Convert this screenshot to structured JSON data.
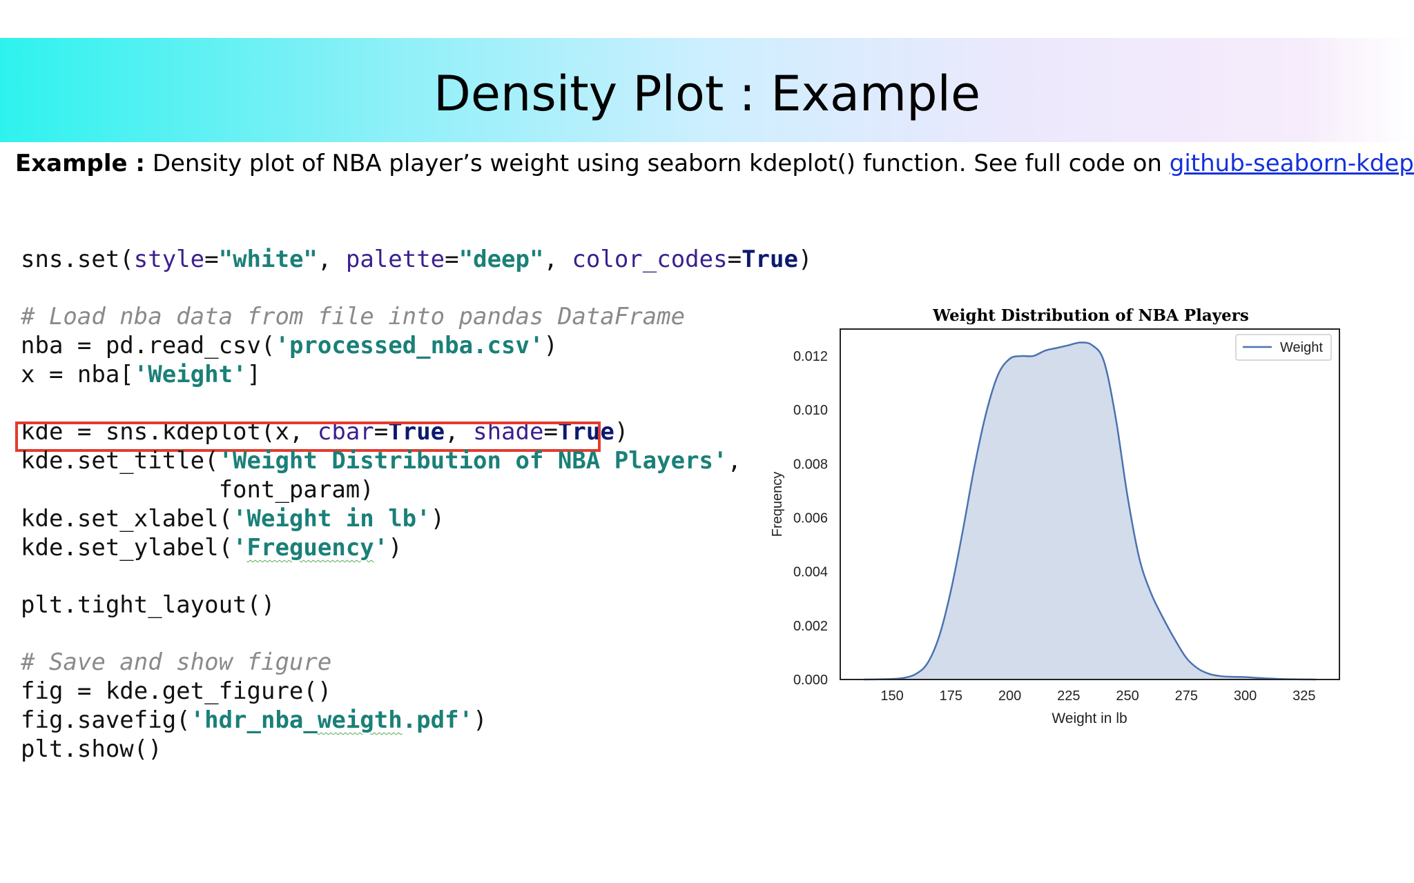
{
  "slide": {
    "title": "Density Plot : Example",
    "intro_bold": "Example :",
    "intro_text": " Density plot of NBA player’s weight using seaborn kdeplot() function. See full code on ",
    "intro_link": "github-seaborn-kdeplot",
    "intro_end": "."
  },
  "code": {
    "line1": {
      "a": "sns.set(",
      "b": "style",
      "c": "=",
      "d": "\"white\"",
      "e": ", ",
      "f": "palette",
      "g": "=",
      "h": "\"deep\"",
      "i": ", ",
      "j": "color_codes",
      "k": "=",
      "l": "True",
      "m": ")"
    },
    "line2": "# Load nba data from file into pandas DataFrame",
    "line3": {
      "a": "nba = pd.read_csv(",
      "b": "'processed_nba.csv'",
      "c": ")"
    },
    "line4": {
      "a": "x = nba[",
      "b": "'Weight'",
      "c": "]"
    },
    "line5": {
      "a": "kde = sns.kdeplot(x, ",
      "b": "cbar",
      "c": "=",
      "d": "True",
      "e": ", ",
      "f": "shade",
      "g": "=",
      "h": "True",
      "i": ")"
    },
    "line6": {
      "a": "kde.set_title(",
      "b": "'Weight Distribution of NBA Players'",
      "c": ","
    },
    "line7": "              font_param)",
    "line8": {
      "a": "kde.set_xlabel(",
      "b": "'Weight in lb'",
      "c": ")"
    },
    "line9": {
      "a": "kde.set_ylabel(",
      "b": "'",
      "c": "Freguency",
      "d": "'",
      "e": ")"
    },
    "line10": "plt.tight_layout()",
    "line11": "# Save and show figure",
    "line12": "fig = kde.get_figure()",
    "line13": {
      "a": "fig.savefig(",
      "b": "'hdr_nba_",
      "c": "weigth",
      "d": ".pdf'",
      "e": ")"
    },
    "line14": "plt.show()"
  },
  "chart_data": {
    "type": "area",
    "title": "Weight Distribution of NBA Players",
    "xlabel": "Weight in lb",
    "ylabel": "Frequency",
    "xlim": [
      128,
      340
    ],
    "ylim": [
      0,
      0.013
    ],
    "xticks": [
      "150",
      "175",
      "200",
      "225",
      "250",
      "275",
      "300",
      "325"
    ],
    "yticks": [
      "0.000",
      "0.002",
      "0.004",
      "0.006",
      "0.008",
      "0.010",
      "0.012"
    ],
    "legend": "top-right",
    "series": [
      {
        "name": "Weight",
        "color": "#4c72b0",
        "x": [
          138,
          150,
          155,
          160,
          165,
          170,
          175,
          180,
          185,
          190,
          195,
          200,
          205,
          210,
          215,
          220,
          225,
          230,
          235,
          240,
          245,
          250,
          255,
          260,
          265,
          270,
          275,
          280,
          285,
          290,
          295,
          300,
          305,
          310,
          315,
          320,
          325,
          330
        ],
        "y": [
          0.0,
          2e-05,
          6e-05,
          0.0002,
          0.0006,
          0.0016,
          0.0033,
          0.0055,
          0.0079,
          0.0099,
          0.0113,
          0.0119,
          0.012,
          0.012,
          0.0122,
          0.0123,
          0.0124,
          0.0125,
          0.0124,
          0.0118,
          0.0097,
          0.0068,
          0.0045,
          0.0032,
          0.0023,
          0.0015,
          0.0008,
          0.0004,
          0.0002,
          0.00012,
          0.0001,
          9e-05,
          6e-05,
          4e-05,
          2e-05,
          1e-05,
          4e-06,
          0.0
        ]
      }
    ]
  }
}
